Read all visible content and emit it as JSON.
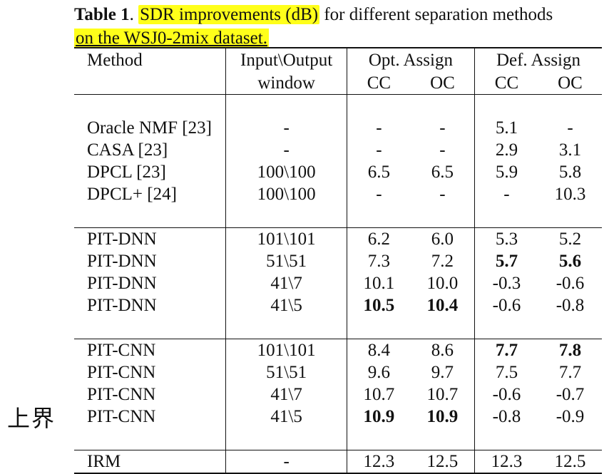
{
  "caption": {
    "label": "Table 1",
    "sep": ". ",
    "highlight": "SDR improvements (dB)",
    "rest": " for different separation methods",
    "line2": "on the WSJ0-2mix dataset."
  },
  "side_note": "上界",
  "table": {
    "headers": {
      "method": "Method",
      "window_l1": "Input\\Output",
      "window_l2": "window",
      "opt": "Opt. Assign",
      "def": "Def. Assign",
      "cc": "CC",
      "oc": "OC"
    },
    "groups": [
      [
        {
          "method": "Oracle NMF [23]",
          "window": "-",
          "opt_cc": "-",
          "opt_oc": "-",
          "def_cc": "5.1",
          "def_oc": "-"
        },
        {
          "method": "CASA [23]",
          "window": "-",
          "opt_cc": "-",
          "opt_oc": "-",
          "def_cc": "2.9",
          "def_oc": "3.1"
        },
        {
          "method": "DPCL [23]",
          "window": "100\\100",
          "opt_cc": "6.5",
          "opt_oc": "6.5",
          "def_cc": "5.9",
          "def_oc": "5.8"
        },
        {
          "method": "DPCL+ [24]",
          "window": "100\\100",
          "opt_cc": "-",
          "opt_oc": "-",
          "def_cc": "-",
          "def_oc": "10.3"
        }
      ],
      [
        {
          "method": "PIT-DNN",
          "window": "101\\101",
          "opt_cc": "6.2",
          "opt_oc": "6.0",
          "def_cc": "5.3",
          "def_oc": "5.2"
        },
        {
          "method": "PIT-DNN",
          "window": "51\\51",
          "opt_cc": "7.3",
          "opt_oc": "7.2",
          "def_cc": "5.7",
          "def_oc": "5.6"
        },
        {
          "method": "PIT-DNN",
          "window": "41\\7",
          "opt_cc": "10.1",
          "opt_oc": "10.0",
          "def_cc": "-0.3",
          "def_oc": "-0.6"
        },
        {
          "method": "PIT-DNN",
          "window": "41\\5",
          "opt_cc": "10.5",
          "opt_oc": "10.4",
          "def_cc": "-0.6",
          "def_oc": "-0.8"
        }
      ],
      [
        {
          "method": "PIT-CNN",
          "window": "101\\101",
          "opt_cc": "8.4",
          "opt_oc": "8.6",
          "def_cc": "7.7",
          "def_oc": "7.8"
        },
        {
          "method": "PIT-CNN",
          "window": "51\\51",
          "opt_cc": "9.6",
          "opt_oc": "9.7",
          "def_cc": "7.5",
          "def_oc": "7.7"
        },
        {
          "method": "PIT-CNN",
          "window": "41\\7",
          "opt_cc": "10.7",
          "opt_oc": "10.7",
          "def_cc": "-0.6",
          "def_oc": "-0.7"
        },
        {
          "method": "PIT-CNN",
          "window": "41\\5",
          "opt_cc": "10.9",
          "opt_oc": "10.9",
          "def_cc": "-0.8",
          "def_oc": "-0.9"
        }
      ],
      [
        {
          "method": "IRM",
          "window": "-",
          "opt_cc": "12.3",
          "opt_oc": "12.5",
          "def_cc": "12.3",
          "def_oc": "12.5"
        }
      ]
    ]
  }
}
